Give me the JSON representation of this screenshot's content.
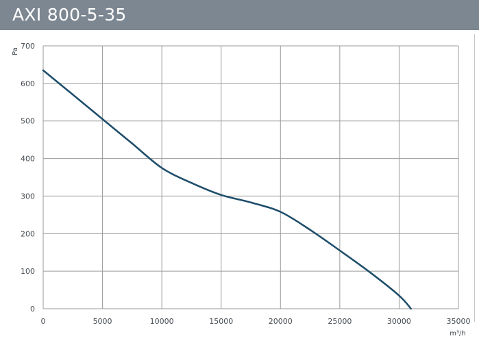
{
  "chart_data": {
    "type": "line",
    "title": "AXI 800-5-35",
    "xlabel": "m³/h",
    "ylabel": "Pa",
    "xlim": [
      0,
      35000
    ],
    "ylim": [
      0,
      700
    ],
    "x_ticks": [
      "0",
      "5000",
      "10000",
      "15000",
      "20000",
      "25000",
      "30000",
      "35000"
    ],
    "y_ticks": [
      "0",
      "100",
      "200",
      "300",
      "400",
      "500",
      "600",
      "700"
    ],
    "grid": true,
    "colors": {
      "title_bar": "#7d8792",
      "curve": "#1f4e6b",
      "grid": "#9a9a9a"
    },
    "series": [
      {
        "x": [
          0,
          2500,
          5000,
          7500,
          10000,
          12500,
          15000,
          17500,
          20000,
          22500,
          25000,
          27500,
          30000,
          31000
        ],
        "y": [
          635,
          570,
          505,
          440,
          375,
          335,
          303,
          283,
          258,
          210,
          155,
          98,
          35,
          0
        ]
      }
    ]
  }
}
